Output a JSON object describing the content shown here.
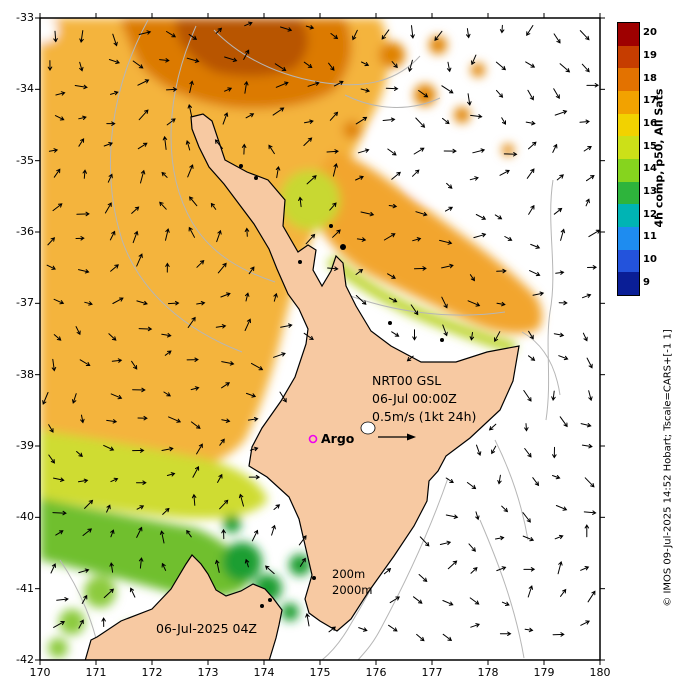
{
  "axes": {
    "x_ticks": [
      "170",
      "171",
      "172",
      "173",
      "174",
      "175",
      "176",
      "177",
      "178",
      "179",
      "180"
    ],
    "y_ticks": [
      "-33",
      "-34",
      "-35",
      "-36",
      "-37",
      "-38",
      "-39",
      "-40",
      "-41",
      "-42"
    ]
  },
  "colorbar": {
    "title": "4h comp, p50, All Sats",
    "ticks": [
      "20",
      "19",
      "18",
      "17",
      "16",
      "15",
      "14",
      "13",
      "12",
      "11",
      "10",
      "9"
    ],
    "colors": [
      "#9E0000",
      "#C63D00",
      "#E37200",
      "#F2A200",
      "#F2D200",
      "#CCE018",
      "#86D41E",
      "#2EB43C",
      "#00B4B4",
      "#1E8CF0",
      "#2353DC",
      "#0A1E96"
    ]
  },
  "annotations": {
    "model": "NRT00 GSL",
    "valid_time": "06-Jul 00:00Z",
    "vector_scale": "0.5m/s (1kt 24h)",
    "argo_label": "Argo",
    "depth_contour_1": "200m",
    "depth_contour_2": "2000m",
    "date_label": "06-Jul-2025 04Z"
  },
  "footer": {
    "credit": "© IMOS 09-Jul-2025 14:52 Hobart; Tscale=CARS+[-1 1]"
  },
  "colors": {
    "land": "#F7C9A2",
    "no_data_ocean": "#FFFFFF",
    "argo_marker": "#EE00EE",
    "contour_gray": "#B6B6B6",
    "vector_black": "#000000"
  }
}
